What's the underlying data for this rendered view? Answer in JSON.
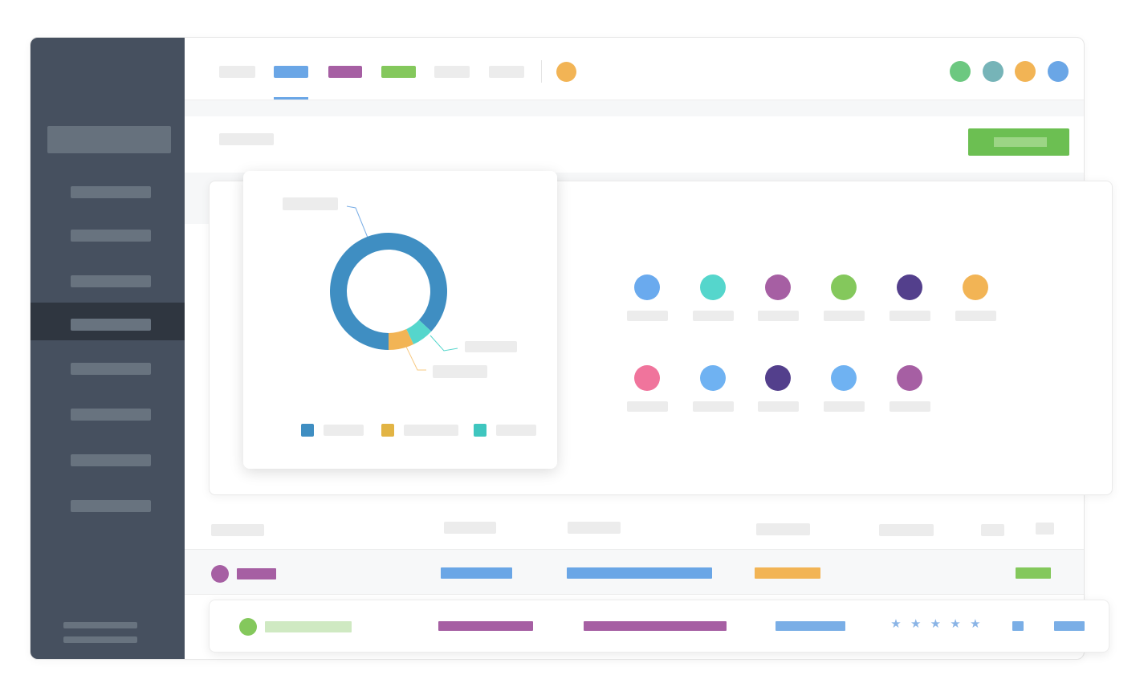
{
  "colors": {
    "sidebar": "#46505f",
    "sidebar_active": "#2f3640",
    "blue": "#6aa6e6",
    "purple": "#a65fa3",
    "green": "#84c85c",
    "orange": "#f2b455",
    "teal": "#55d6cc",
    "primary_button": "#6cbf52"
  },
  "header": {
    "tab_colors": [
      "#ececec",
      "#6aa6e6",
      "#a65fa3",
      "#84c85c",
      "#ececec",
      "#ececec"
    ],
    "active_tab": 1,
    "indicator_color": "#f2b455",
    "right_dots": [
      "#6cc880",
      "#76b4b8",
      "#f2b455",
      "#6aa6e6"
    ]
  },
  "sidebar": {
    "item_count": 8,
    "active_index": 3
  },
  "chart_data": {
    "type": "pie",
    "donut": true,
    "slices": [
      {
        "color": "#3f8ec2",
        "value": 0.87
      },
      {
        "color": "#55d6cc",
        "value": 0.06
      },
      {
        "color": "#f2b455",
        "value": 0.07
      }
    ],
    "legend": [
      "#3f8ec2",
      "#e2b444",
      "#3fc6bf"
    ],
    "legend_placement": "bottom"
  },
  "avatars": [
    [
      "#6aaaee",
      "#55d6cc",
      "#a65fa3",
      "#84c85c",
      "#533f8c",
      "#f2b455"
    ],
    [
      "#f0749c",
      "#6fb2f2",
      "#533f8c",
      "#6fb2f2",
      "#a65fa3"
    ]
  ],
  "table": {
    "rows": [
      {
        "dot": "#a65fa3",
        "cells": [
          "#a65fa3",
          "#6aa6e6",
          "#6aa6e6",
          "#f2b455",
          "dots",
          "#84c85c"
        ]
      },
      {
        "dot": "#84c85c",
        "cells": [
          "#cfe9c2",
          "#a65fa3",
          "#a65fa3",
          "#7aaee6",
          "stars",
          "#7aaee6"
        ]
      }
    ],
    "row1_rating": 5,
    "row2_rating": 5
  }
}
